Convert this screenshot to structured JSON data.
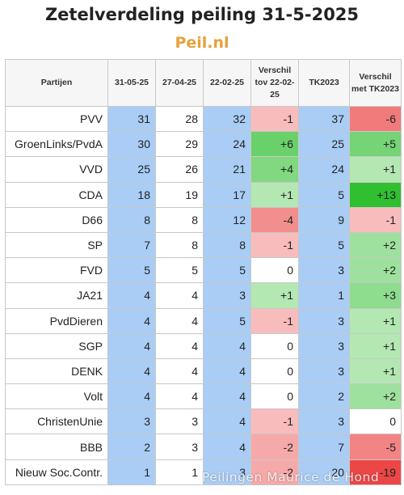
{
  "header": {
    "title": "Zetelverdeling peiling 31-5-2025",
    "subtitle": "Peil.nl"
  },
  "watermark": "Peilingen Maurice de Hond",
  "chart_data": {
    "type": "table",
    "columns": [
      "Partijen",
      "31-05-25",
      "27-04-25",
      "22-02-25",
      "Verschil tov 22-02-25",
      "TK2023",
      "Verschil met TK2023"
    ],
    "rows": [
      {
        "party": "PVV",
        "p1": "31",
        "p2": "28",
        "p3": "32",
        "d1": "-1",
        "tk": "37",
        "d2": "-6"
      },
      {
        "party": "GroenLinks/PvdA",
        "p1": "30",
        "p2": "29",
        "p3": "24",
        "d1": "+6",
        "tk": "25",
        "d2": "+5"
      },
      {
        "party": "VVD",
        "p1": "25",
        "p2": "26",
        "p3": "21",
        "d1": "+4",
        "tk": "24",
        "d2": "+1"
      },
      {
        "party": "CDA",
        "p1": "18",
        "p2": "19",
        "p3": "17",
        "d1": "+1",
        "tk": "5",
        "d2": "+13"
      },
      {
        "party": "D66",
        "p1": "8",
        "p2": "8",
        "p3": "12",
        "d1": "-4",
        "tk": "9",
        "d2": "-1"
      },
      {
        "party": "SP",
        "p1": "7",
        "p2": "8",
        "p3": "8",
        "d1": "-1",
        "tk": "5",
        "d2": "+2"
      },
      {
        "party": "FVD",
        "p1": "5",
        "p2": "5",
        "p3": "5",
        "d1": "0",
        "tk": "3",
        "d2": "+2"
      },
      {
        "party": "JA21",
        "p1": "4",
        "p2": "4",
        "p3": "3",
        "d1": "+1",
        "tk": "1",
        "d2": "+3"
      },
      {
        "party": "PvdDieren",
        "p1": "4",
        "p2": "4",
        "p3": "5",
        "d1": "-1",
        "tk": "3",
        "d2": "+1"
      },
      {
        "party": "SGP",
        "p1": "4",
        "p2": "4",
        "p3": "4",
        "d1": "0",
        "tk": "3",
        "d2": "+1"
      },
      {
        "party": "DENK",
        "p1": "4",
        "p2": "4",
        "p3": "4",
        "d1": "0",
        "tk": "3",
        "d2": "+1"
      },
      {
        "party": "Volt",
        "p1": "4",
        "p2": "4",
        "p3": "4",
        "d1": "0",
        "tk": "2",
        "d2": "+2"
      },
      {
        "party": "ChristenUnie",
        "p1": "3",
        "p2": "3",
        "p3": "4",
        "d1": "-1",
        "tk": "3",
        "d2": "0"
      },
      {
        "party": "BBB",
        "p1": "2",
        "p2": "3",
        "p3": "4",
        "d1": "-2",
        "tk": "7",
        "d2": "-5"
      },
      {
        "party": "Nieuw Soc.Contr.",
        "p1": "1",
        "p2": "1",
        "p3": "3",
        "d1": "-2",
        "tk": "20",
        "d2": "-19"
      }
    ],
    "colors": {
      "seat_column": "#a9cdf5",
      "positive": "#2fbf2f",
      "negative": "#ec4646",
      "neutral": "#ffffff"
    }
  }
}
